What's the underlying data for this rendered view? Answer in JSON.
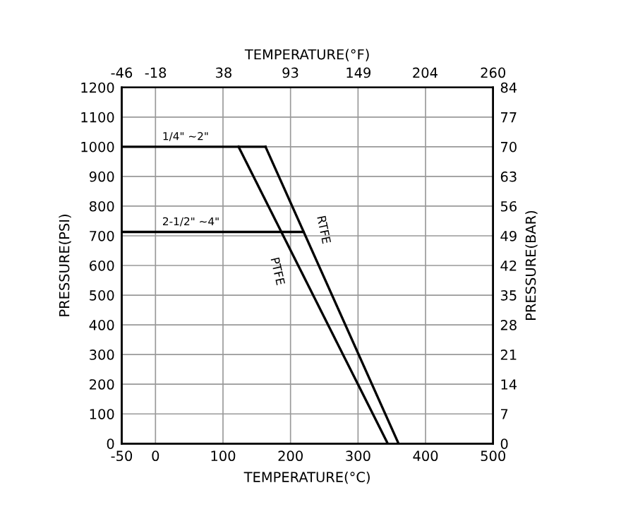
{
  "chart_data": {
    "type": "line",
    "xlabel": "TEMPERATURE(°C)",
    "ylabel": "PRESSURE(PSI)",
    "y2label": "PRESSURE(BAR)",
    "x2label": "TEMPERATURE(°F)",
    "series": [
      {
        "name": "1/4\" ~2\"",
        "color": "#000000",
        "x": [
          -50,
          163
        ],
        "values": [
          1000,
          1000
        ]
      },
      {
        "name": "2-1/2\" ~4\"",
        "color": "#000000",
        "x": [
          -50,
          219
        ],
        "values": [
          713,
          713
        ]
      },
      {
        "name": "PTFE",
        "color": "#000000",
        "x": [
          123,
          344
        ],
        "values": [
          1000,
          0
        ]
      },
      {
        "name": "RTFE",
        "color": "#000000",
        "x": [
          163,
          360
        ],
        "values": [
          1000,
          0
        ]
      }
    ],
    "xlim": [
      -50,
      500
    ],
    "xticks": [
      -50,
      0,
      100,
      200,
      300,
      400,
      500
    ],
    "ylim": [
      0,
      1200
    ],
    "yticks": [
      0,
      100,
      200,
      300,
      400,
      500,
      600,
      700,
      800,
      900,
      1000,
      1100,
      1200
    ],
    "y2lim": [
      0,
      84
    ],
    "y2ticks": [
      0,
      7,
      14,
      21,
      28,
      35,
      42,
      49,
      56,
      63,
      70,
      77,
      84
    ],
    "x2lim": [
      -46,
      260
    ],
    "x2ticks": [
      -46,
      -18,
      38,
      93,
      149,
      204,
      260
    ],
    "grid": true,
    "legend": false,
    "marker": "none",
    "line_style": "solid"
  }
}
